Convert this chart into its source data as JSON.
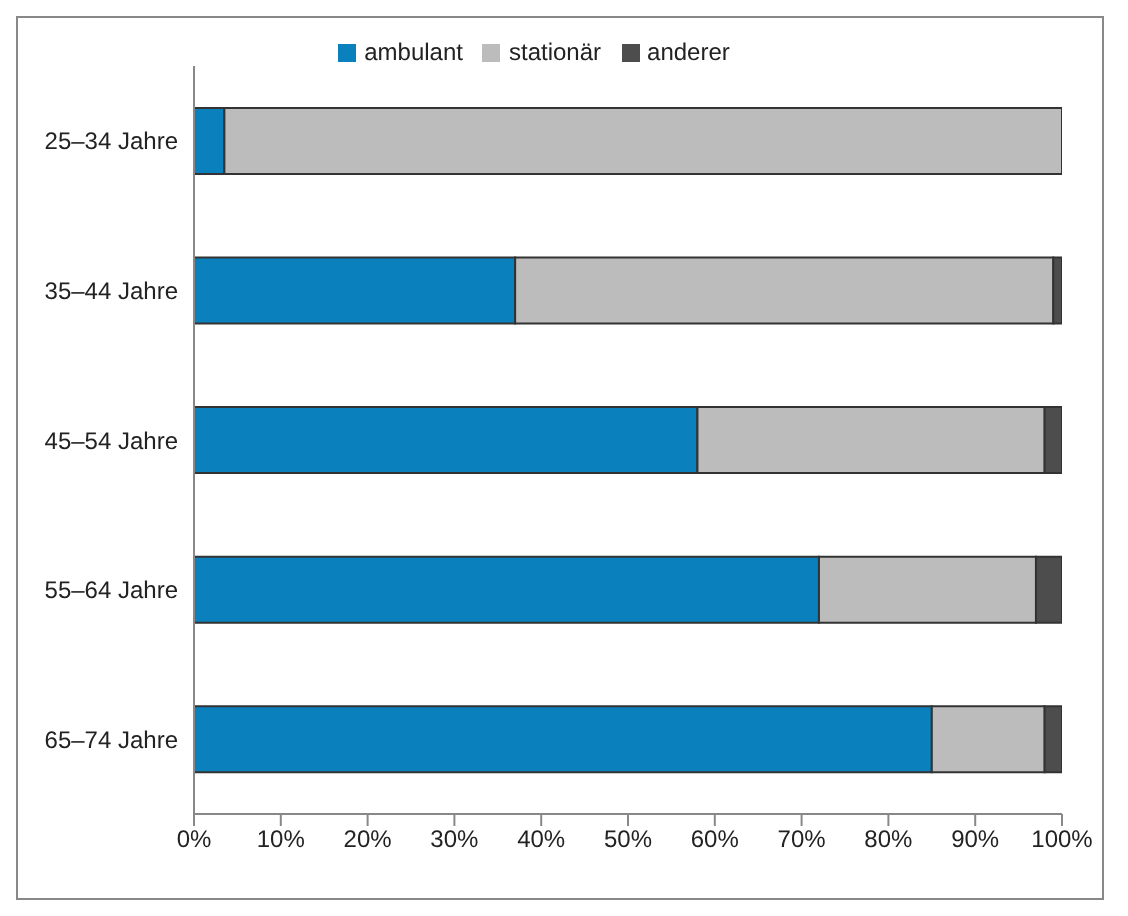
{
  "chart_data": {
    "type": "bar",
    "orientation": "horizontal",
    "stacked": true,
    "categories": [
      "25–34 Jahre",
      "35–44 Jahre",
      "45–54 Jahre",
      "55–64 Jahre",
      "65–74 Jahre"
    ],
    "series": [
      {
        "name": "ambulant",
        "color": "#0a80bd",
        "values": [
          3.5,
          37,
          58,
          72,
          85
        ]
      },
      {
        "name": "stationär",
        "color": "#bcbcbc",
        "values": [
          96.5,
          62,
          40,
          25,
          13
        ]
      },
      {
        "name": "anderer",
        "color": "#4d4d4d",
        "values": [
          0,
          1,
          2,
          3,
          2
        ]
      }
    ],
    "xlim": [
      0,
      100
    ],
    "xticks": [
      {
        "value": 0,
        "label": "0%"
      },
      {
        "value": 10,
        "label": "10%"
      },
      {
        "value": 20,
        "label": "20%"
      },
      {
        "value": 30,
        "label": "30%"
      },
      {
        "value": 40,
        "label": "40%"
      },
      {
        "value": 50,
        "label": "50%"
      },
      {
        "value": 60,
        "label": "60%"
      },
      {
        "value": 70,
        "label": "70%"
      },
      {
        "value": 80,
        "label": "80%"
      },
      {
        "value": 90,
        "label": "90%"
      },
      {
        "value": 100,
        "label": "100%"
      }
    ],
    "legend": "top",
    "grid": false
  }
}
